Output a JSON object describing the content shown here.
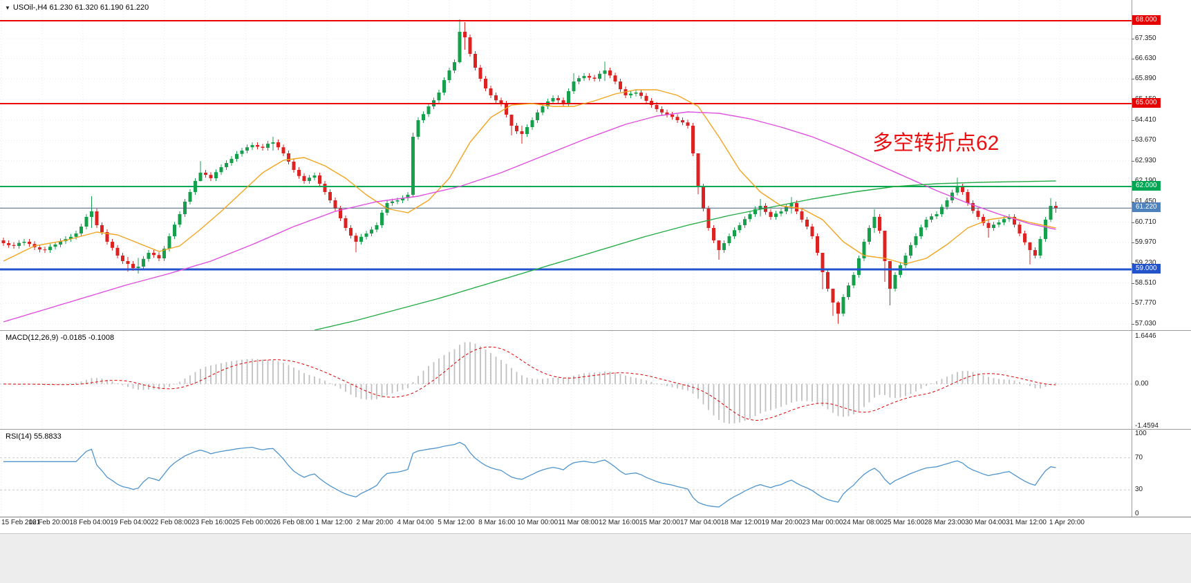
{
  "colors": {
    "up": "#17a04c",
    "down": "#dd2222",
    "grid": "#e8e8e8",
    "axis_text": "#1c1c1c",
    "separator": "#9a9a9a"
  },
  "chart_data": {
    "type": "candlestick",
    "symbol": "USOil-",
    "timeframe": "H4",
    "symbol_line": "USOil-,H4  61.230 61.320 61.190 61.220",
    "current_ohlc": {
      "open": "61.230",
      "high": "61.320",
      "low": "61.190",
      "close": "61.220"
    },
    "annotation": {
      "text": "多空转折点62",
      "color": "#e81010"
    },
    "y_axis": {
      "price_max": 68.75,
      "price_min": 56.8
    },
    "y_ticks": [
      "67.350",
      "66.630",
      "65.890",
      "65.150",
      "64.410",
      "63.670",
      "62.930",
      "62.190",
      "61.450",
      "60.710",
      "59.970",
      "59.230",
      "58.510",
      "57.770",
      "57.030"
    ],
    "x_labels": [
      "15 Feb 2021",
      "16 Feb 20:00",
      "18 Feb 04:00",
      "19 Feb 04:00",
      "22 Feb 08:00",
      "23 Feb 16:00",
      "25 Feb 00:00",
      "26 Feb 08:00",
      "1 Mar 12:00",
      "2 Mar 20:00",
      "4 Mar 04:00",
      "5 Mar 12:00",
      "8 Mar 16:00",
      "10 Mar 00:00",
      "11 Mar 08:00",
      "12 Mar 16:00",
      "15 Mar 20:00",
      "17 Mar 04:00",
      "18 Mar 12:00",
      "19 Mar 20:00",
      "23 Mar 00:00",
      "24 Mar 08:00",
      "25 Mar 16:00",
      "28 Mar 23:00",
      "30 Mar 04:00",
      "31 Mar 12:00",
      "1 Apr 20:00"
    ],
    "price_lines": [
      {
        "price": 68.0,
        "label": "68.000",
        "color": "#e60000",
        "width": 2
      },
      {
        "price": 65.0,
        "label": "65.000",
        "color": "#e60000",
        "width": 2
      },
      {
        "price": 62.0,
        "label": "62.000",
        "color": "#00a651",
        "width": 2
      },
      {
        "price": 59.0,
        "label": "59.000",
        "color": "#2353cc",
        "width": 3
      }
    ],
    "bid_line": {
      "price": 61.22,
      "label": "61.220",
      "line_color": "#46607a",
      "badge_color": "#4f81bd"
    },
    "candles": {
      "default_wick": 0.1,
      "closes": [
        59.95,
        59.88,
        59.85,
        59.96,
        60.0,
        59.92,
        59.8,
        59.72,
        59.7,
        59.82,
        59.9,
        60.02,
        60.1,
        60.18,
        60.3,
        60.55,
        60.9,
        61.1,
        60.6,
        60.35,
        60.0,
        59.78,
        59.5,
        59.3,
        59.2,
        59.05,
        59.1,
        59.38,
        59.6,
        59.52,
        59.4,
        59.75,
        60.2,
        60.62,
        61.0,
        61.45,
        61.8,
        62.2,
        62.5,
        62.42,
        62.3,
        62.52,
        62.7,
        62.85,
        63.0,
        63.18,
        63.3,
        63.42,
        63.5,
        63.44,
        63.4,
        63.55,
        63.6,
        63.42,
        63.2,
        62.9,
        62.6,
        62.38,
        62.2,
        62.32,
        62.4,
        62.1,
        61.8,
        61.5,
        61.2,
        60.85,
        60.5,
        60.22,
        60.0,
        60.18,
        60.3,
        60.44,
        60.6,
        61.05,
        61.4,
        61.46,
        61.5,
        61.58,
        61.7,
        63.8,
        64.4,
        64.62,
        64.9,
        65.12,
        65.4,
        65.85,
        66.2,
        66.5,
        67.6,
        67.4,
        66.8,
        66.3,
        65.9,
        65.55,
        65.3,
        65.12,
        65.0,
        64.6,
        64.2,
        64.0,
        63.9,
        64.15,
        64.4,
        64.68,
        64.9,
        65.08,
        65.2,
        65.12,
        65.0,
        65.45,
        65.8,
        65.92,
        66.0,
        65.94,
        65.9,
        66.08,
        66.2,
        66.02,
        65.8,
        65.52,
        65.3,
        65.36,
        65.4,
        65.28,
        65.1,
        64.95,
        64.8,
        64.68,
        64.6,
        64.52,
        64.4,
        64.32,
        64.2,
        63.2,
        62.0,
        61.2,
        60.5,
        60.05,
        59.7,
        59.95,
        60.2,
        60.42,
        60.6,
        60.82,
        61.0,
        61.18,
        61.3,
        61.08,
        60.9,
        61.02,
        61.1,
        61.28,
        61.4,
        61.1,
        60.8,
        60.55,
        60.2,
        59.6,
        58.9,
        58.3,
        57.8,
        57.4,
        58.0,
        58.42,
        58.8,
        59.4,
        60.0,
        60.5,
        60.9,
        60.4,
        59.3,
        58.3,
        58.8,
        59.15,
        59.5,
        59.88,
        60.2,
        60.52,
        60.8,
        60.92,
        61.0,
        61.26,
        61.5,
        61.78,
        62.0,
        61.8,
        61.4,
        61.12,
        60.9,
        60.68,
        60.5,
        60.62,
        60.7,
        60.82,
        60.9,
        60.62,
        60.3,
        59.98,
        59.7,
        59.5,
        60.1,
        60.8,
        61.3,
        61.22
      ],
      "wick_overrides": {
        "17": [
          61.65,
          60.5
        ],
        "24": [
          59.45,
          58.92
        ],
        "26": [
          59.42,
          58.85
        ],
        "38": [
          62.92,
          62.18
        ],
        "52": [
          63.8,
          63.3
        ],
        "68": [
          60.32,
          59.62
        ],
        "79": [
          63.95,
          61.6
        ],
        "88": [
          68.05,
          66.45
        ],
        "89": [
          67.95,
          66.95
        ],
        "98": [
          64.55,
          63.85
        ],
        "100": [
          64.2,
          63.55
        ],
        "110": [
          66.1,
          65.35
        ],
        "116": [
          66.52,
          65.82
        ],
        "134": [
          62.95,
          61.72
        ],
        "138": [
          60.02,
          59.35
        ],
        "146": [
          61.55,
          60.92
        ],
        "152": [
          61.62,
          61.02
        ],
        "158": [
          59.42,
          58.28
        ],
        "160": [
          58.15,
          57.32
        ],
        "161": [
          57.85,
          57.03
        ],
        "168": [
          61.18,
          60.32
        ],
        "170": [
          59.92,
          58.55
        ],
        "171": [
          58.72,
          57.7
        ],
        "184": [
          62.32,
          61.68
        ],
        "190": [
          60.82,
          60.15
        ],
        "198": [
          59.95,
          59.18
        ],
        "202": [
          61.58,
          60.72
        ],
        "203": [
          61.45,
          61.05
        ]
      }
    },
    "moving_averages": [
      {
        "name": "ma-fast-orange",
        "color": "#f2a41f",
        "points": [
          [
            0,
            59.3
          ],
          [
            6,
            59.85
          ],
          [
            12,
            60.05
          ],
          [
            18,
            60.35
          ],
          [
            22,
            60.25
          ],
          [
            26,
            59.95
          ],
          [
            30,
            59.65
          ],
          [
            34,
            59.85
          ],
          [
            38,
            60.45
          ],
          [
            42,
            61.1
          ],
          [
            46,
            61.8
          ],
          [
            50,
            62.5
          ],
          [
            54,
            62.95
          ],
          [
            58,
            63.05
          ],
          [
            62,
            62.75
          ],
          [
            66,
            62.3
          ],
          [
            70,
            61.7
          ],
          [
            74,
            61.2
          ],
          [
            78,
            61.05
          ],
          [
            82,
            61.5
          ],
          [
            86,
            62.3
          ],
          [
            90,
            63.6
          ],
          [
            94,
            64.5
          ],
          [
            98,
            64.95
          ],
          [
            102,
            65.0
          ],
          [
            106,
            64.9
          ],
          [
            110,
            64.9
          ],
          [
            114,
            65.1
          ],
          [
            118,
            65.35
          ],
          [
            122,
            65.5
          ],
          [
            126,
            65.5
          ],
          [
            130,
            65.3
          ],
          [
            134,
            64.9
          ],
          [
            138,
            63.8
          ],
          [
            142,
            62.6
          ],
          [
            146,
            61.8
          ],
          [
            150,
            61.3
          ],
          [
            154,
            61.2
          ],
          [
            158,
            60.8
          ],
          [
            162,
            60.0
          ],
          [
            166,
            59.5
          ],
          [
            170,
            59.4
          ],
          [
            174,
            59.2
          ],
          [
            178,
            59.4
          ],
          [
            182,
            59.9
          ],
          [
            186,
            60.5
          ],
          [
            190,
            60.8
          ],
          [
            194,
            60.9
          ],
          [
            198,
            60.7
          ],
          [
            203,
            60.5
          ]
        ]
      },
      {
        "name": "ma-mid-magenta",
        "color": "#df4fdf",
        "points": [
          [
            0,
            57.1
          ],
          [
            8,
            57.55
          ],
          [
            16,
            58.0
          ],
          [
            24,
            58.45
          ],
          [
            32,
            58.85
          ],
          [
            40,
            59.3
          ],
          [
            48,
            59.9
          ],
          [
            56,
            60.55
          ],
          [
            64,
            61.1
          ],
          [
            72,
            61.45
          ],
          [
            80,
            61.65
          ],
          [
            88,
            62.0
          ],
          [
            96,
            62.5
          ],
          [
            104,
            63.1
          ],
          [
            112,
            63.7
          ],
          [
            120,
            64.25
          ],
          [
            126,
            64.55
          ],
          [
            132,
            64.7
          ],
          [
            138,
            64.65
          ],
          [
            144,
            64.45
          ],
          [
            150,
            64.15
          ],
          [
            156,
            63.8
          ],
          [
            162,
            63.35
          ],
          [
            168,
            62.85
          ],
          [
            174,
            62.35
          ],
          [
            180,
            61.85
          ],
          [
            186,
            61.4
          ],
          [
            192,
            61.0
          ],
          [
            198,
            60.65
          ],
          [
            203,
            60.45
          ]
        ]
      },
      {
        "name": "ma-slow-green",
        "color": "#23ab45",
        "points": [
          [
            60,
            56.8
          ],
          [
            68,
            57.15
          ],
          [
            76,
            57.55
          ],
          [
            84,
            57.95
          ],
          [
            92,
            58.4
          ],
          [
            100,
            58.85
          ],
          [
            108,
            59.3
          ],
          [
            116,
            59.75
          ],
          [
            124,
            60.2
          ],
          [
            132,
            60.6
          ],
          [
            140,
            60.95
          ],
          [
            148,
            61.25
          ],
          [
            156,
            61.55
          ],
          [
            164,
            61.8
          ],
          [
            172,
            62.0
          ],
          [
            180,
            62.1
          ],
          [
            188,
            62.15
          ],
          [
            203,
            62.2
          ]
        ]
      }
    ],
    "indicators": [
      {
        "name": "MACD",
        "label": "MACD(12,26,9) -0.0185 -0.1008",
        "values": [
          "-0.0185",
          "-0.1008"
        ],
        "ticks": [
          "1.6446",
          "0.00",
          "-1.4594"
        ],
        "range": [
          1.6446,
          -1.4594
        ],
        "params": {
          "fast": 12,
          "slow": 26,
          "signal": 9
        },
        "histogram_color": "#c0c0c0",
        "signal_color": "#dd0000"
      },
      {
        "name": "RSI",
        "label": "RSI(14) 55.8833",
        "value": "55.8833",
        "ticks": [
          "100",
          "70",
          "30",
          "0"
        ],
        "levels": [
          70,
          30
        ],
        "period": 14,
        "line_color": "#4f94cd",
        "level_color": "#c8c8c8"
      }
    ]
  }
}
